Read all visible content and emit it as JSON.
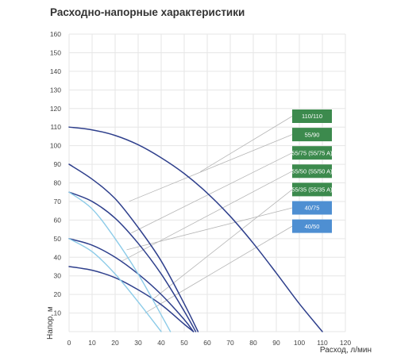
{
  "chart_data": {
    "type": "line",
    "title": "Расходно-напорные характеристики",
    "xlabel": "Расход, л/мин",
    "ylabel": "Напор, м",
    "xlim": [
      0,
      120
    ],
    "ylim": [
      0,
      160
    ],
    "xticks": [
      0,
      10,
      20,
      30,
      40,
      50,
      60,
      70,
      80,
      90,
      100,
      110,
      120
    ],
    "yticks": [
      10,
      20,
      30,
      40,
      50,
      60,
      70,
      80,
      90,
      100,
      110,
      120,
      130,
      140,
      150,
      160
    ],
    "grid": true,
    "colors": {
      "dark_curve": "#2e3f8c",
      "light_curve": "#8ccbe8",
      "badge_green": "#3c8a4d",
      "badge_blue": "#4e8fd2",
      "grid": "#e6e6e6",
      "leader": "#b5b5b5"
    },
    "series": [
      {
        "name": "110/110",
        "color_key": "dark_curve",
        "x": [
          0,
          10,
          20,
          30,
          40,
          50,
          60,
          70,
          80,
          90,
          100,
          110
        ],
        "y": [
          110,
          108.5,
          105.5,
          100.5,
          93.5,
          85,
          74.5,
          62,
          47.5,
          31.5,
          15,
          0
        ]
      },
      {
        "name": "55/90",
        "color_key": "dark_curve",
        "x": [
          0,
          10,
          20,
          30,
          40,
          50,
          56
        ],
        "y": [
          90,
          82,
          71.5,
          56,
          38,
          15,
          0
        ]
      },
      {
        "name": "55/75 (55/75 A)",
        "color_key": "dark_curve",
        "x": [
          0,
          10,
          20,
          30,
          40,
          50,
          55
        ],
        "y": [
          75,
          70,
          61,
          47.5,
          31,
          11,
          0
        ]
      },
      {
        "name": "55/50 (55/50 A)",
        "color_key": "dark_curve",
        "x": [
          0,
          10,
          20,
          30,
          40,
          50,
          54
        ],
        "y": [
          50,
          46.5,
          40,
          31,
          20,
          6.5,
          0
        ]
      },
      {
        "name": "55/35 (55/35 A)",
        "color_key": "dark_curve",
        "x": [
          0,
          10,
          20,
          30,
          40,
          50,
          54
        ],
        "y": [
          35,
          33,
          29,
          22.5,
          14.5,
          4,
          0
        ]
      },
      {
        "name": "40/75",
        "color_key": "light_curve",
        "x": [
          0,
          10,
          20,
          30,
          40,
          44
        ],
        "y": [
          75,
          66,
          50,
          31,
          9,
          0
        ]
      },
      {
        "name": "40/50",
        "color_key": "light_curve",
        "x": [
          0,
          10,
          20,
          30,
          40
        ],
        "y": [
          50,
          43,
          31,
          16,
          0
        ]
      }
    ],
    "legend": [
      {
        "label": "110/110",
        "color_key": "badge_green",
        "anchor": [
          57,
          86
        ]
      },
      {
        "label": "55/90",
        "color_key": "badge_green",
        "anchor": [
          26,
          70
        ]
      },
      {
        "label": "55/75 (55/75 A)",
        "color_key": "badge_green",
        "anchor": [
          27,
          53
        ]
      },
      {
        "label": "55/50 (55/50 A)",
        "color_key": "badge_green",
        "anchor": [
          23,
          38
        ]
      },
      {
        "label": "55/35 (55/35 A)",
        "color_key": "badge_green",
        "anchor": [
          37,
          18
        ]
      },
      {
        "label": "40/75",
        "color_key": "badge_blue",
        "anchor": [
          25,
          44
        ]
      },
      {
        "label": "40/50",
        "color_key": "badge_blue",
        "anchor": [
          33,
          10
        ]
      }
    ],
    "legend_placement": "right"
  }
}
